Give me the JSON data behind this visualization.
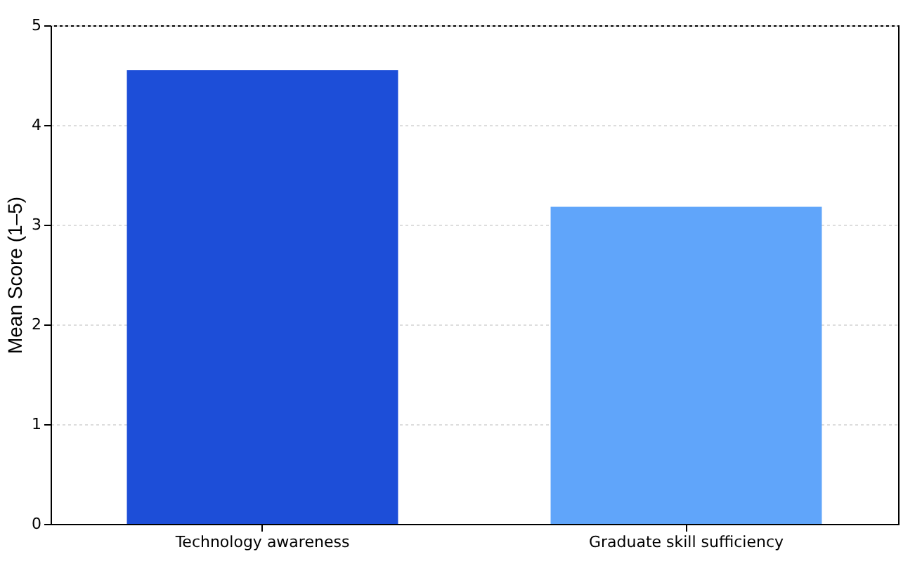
{
  "chart_data": {
    "type": "bar",
    "ylabel": "Mean Score (1–5)",
    "categories": [
      "Technology awareness",
      "Graduate skill sufficiency"
    ],
    "values": [
      4.55,
      3.18
    ],
    "colors": [
      "#1d4ed8",
      "#60a5fa"
    ],
    "ylim": [
      0,
      5
    ],
    "yticks": [
      0,
      1,
      2,
      3,
      4,
      5
    ],
    "grid": "y"
  }
}
